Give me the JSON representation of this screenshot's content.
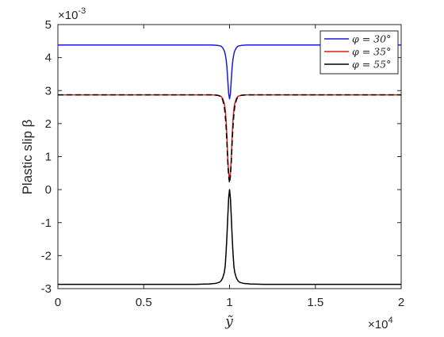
{
  "chart_data": {
    "type": "line",
    "xlabel": "ỹ",
    "ylabel": "Plastic slip β",
    "x_exponent_label": "×10",
    "x_exponent_power": "4",
    "y_exponent_label": "×10",
    "y_exponent_power": "-3",
    "xlim": [
      0,
      2
    ],
    "ylim": [
      -3,
      5
    ],
    "xticks": [
      0,
      0.5,
      1,
      1.5,
      2
    ],
    "xtick_labels": [
      "0",
      "0.5",
      "1",
      "1.5",
      "2"
    ],
    "yticks": [
      5,
      4,
      3,
      2,
      1,
      0,
      -1,
      -2,
      -3
    ],
    "ytick_labels": [
      "5",
      "4",
      "3",
      "2",
      "1",
      "0",
      "-1",
      "-2",
      "-3"
    ],
    "grid": false,
    "legend_position": "top-right",
    "series": [
      {
        "name": "φ = 30°",
        "color": "#1a1ad6",
        "style": "solid",
        "x": [
          0,
          0.8,
          0.9,
          0.93,
          0.95,
          0.96,
          0.97,
          0.975,
          0.98,
          0.985,
          0.99,
          0.995,
          1.0,
          1.005,
          1.01,
          1.015,
          1.02,
          1.025,
          1.03,
          1.04,
          1.05,
          1.07,
          1.1,
          1.2,
          2
        ],
        "values": [
          4.38,
          4.38,
          4.38,
          4.37,
          4.35,
          4.3,
          4.2,
          4.1,
          3.95,
          3.7,
          3.3,
          2.9,
          2.75,
          2.9,
          3.3,
          3.7,
          3.95,
          4.1,
          4.2,
          4.3,
          4.35,
          4.37,
          4.38,
          4.38,
          4.38
        ]
      },
      {
        "name": "φ = 35°",
        "color": "#e31a1a",
        "style": "solid",
        "x": [
          0,
          0.8,
          0.9,
          0.93,
          0.95,
          0.96,
          0.97,
          0.975,
          0.98,
          0.985,
          0.99,
          0.995,
          1.0,
          1.005,
          1.01,
          1.015,
          1.02,
          1.025,
          1.03,
          1.04,
          1.05,
          1.07,
          1.1,
          1.2,
          2
        ],
        "values": [
          2.87,
          2.87,
          2.87,
          2.86,
          2.83,
          2.76,
          2.6,
          2.42,
          2.1,
          1.6,
          0.9,
          0.5,
          0.3,
          0.5,
          0.9,
          1.6,
          2.1,
          2.42,
          2.6,
          2.76,
          2.83,
          2.86,
          2.87,
          2.87,
          2.87
        ]
      },
      {
        "name": "φ = 55°",
        "color": "#000000",
        "style": "solid",
        "x": [
          0,
          0.8,
          0.88,
          0.92,
          0.94,
          0.95,
          0.96,
          0.97,
          0.975,
          0.98,
          0.985,
          0.99,
          0.995,
          1.0,
          1.005,
          1.01,
          1.015,
          1.02,
          1.025,
          1.03,
          1.04,
          1.05,
          1.06,
          1.08,
          1.12,
          1.2,
          2
        ],
        "values": [
          -2.87,
          -2.87,
          -2.86,
          -2.84,
          -2.81,
          -2.77,
          -2.68,
          -2.5,
          -2.3,
          -1.9,
          -1.4,
          -0.8,
          -0.25,
          0.0,
          -0.25,
          -0.8,
          -1.4,
          -1.9,
          -2.3,
          -2.5,
          -2.68,
          -2.77,
          -2.81,
          -2.84,
          -2.86,
          -2.87,
          -2.87
        ]
      },
      {
        "color": "#000000",
        "style": "dashed",
        "x": [
          0,
          0.8,
          0.9,
          0.93,
          0.95,
          0.96,
          0.97,
          0.975,
          0.98,
          0.985,
          0.99,
          0.995,
          1.0,
          1.005,
          1.01,
          1.015,
          1.02,
          1.025,
          1.03,
          1.04,
          1.05,
          1.07,
          1.1,
          1.2,
          2
        ],
        "values": [
          2.87,
          2.87,
          2.87,
          2.86,
          2.82,
          2.72,
          2.5,
          2.25,
          1.9,
          1.4,
          0.8,
          0.4,
          0.2,
          0.4,
          0.8,
          1.4,
          1.9,
          2.25,
          2.5,
          2.72,
          2.82,
          2.86,
          2.87,
          2.87,
          2.87
        ]
      }
    ]
  }
}
